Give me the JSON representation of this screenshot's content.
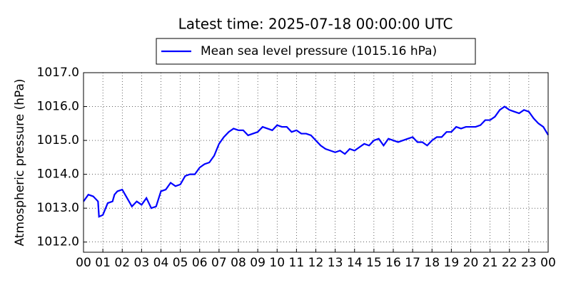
{
  "chart_data": {
    "type": "line",
    "title": "Latest time: 2025-07-18 00:00:00 UTC",
    "y_label": "Atmospheric pressure (hPa)",
    "grid": true,
    "legend": "upper center",
    "xlim": [
      0,
      24
    ],
    "xticks": [
      {
        "value": 0,
        "label": "00"
      },
      {
        "value": 1,
        "label": "01"
      },
      {
        "value": 2,
        "label": "02"
      },
      {
        "value": 3,
        "label": "03"
      },
      {
        "value": 4,
        "label": "04"
      },
      {
        "value": 5,
        "label": "05"
      },
      {
        "value": 6,
        "label": "06"
      },
      {
        "value": 7,
        "label": "07"
      },
      {
        "value": 8,
        "label": "08"
      },
      {
        "value": 9,
        "label": "09"
      },
      {
        "value": 10,
        "label": "10"
      },
      {
        "value": 11,
        "label": "11"
      },
      {
        "value": 12,
        "label": "12"
      },
      {
        "value": 13,
        "label": "13"
      },
      {
        "value": 14,
        "label": "14"
      },
      {
        "value": 15,
        "label": "15"
      },
      {
        "value": 16,
        "label": "16"
      },
      {
        "value": 17,
        "label": "17"
      },
      {
        "value": 18,
        "label": "18"
      },
      {
        "value": 19,
        "label": "19"
      },
      {
        "value": 20,
        "label": "20"
      },
      {
        "value": 21,
        "label": "21"
      },
      {
        "value": 22,
        "label": "22"
      },
      {
        "value": 23,
        "label": "23"
      },
      {
        "value": 24,
        "label": "00"
      }
    ],
    "ylim": [
      1011.7,
      1017
    ],
    "yticks": [
      {
        "value": 1012,
        "label": "1012.0"
      },
      {
        "value": 1013,
        "label": "1013.0"
      },
      {
        "value": 1014,
        "label": "1014.0"
      },
      {
        "value": 1015,
        "label": "1015.0"
      },
      {
        "value": 1016,
        "label": "1016.0"
      },
      {
        "value": 1017,
        "label": "1017.0"
      }
    ],
    "x": [
      0,
      0.25,
      0.5,
      0.75,
      0.8,
      1,
      1.25,
      1.5,
      1.6,
      1.75,
      2,
      2.25,
      2.5,
      2.75,
      3,
      3.25,
      3.5,
      3.75,
      4,
      4.25,
      4.5,
      4.75,
      5,
      5.25,
      5.5,
      5.75,
      6,
      6.25,
      6.5,
      6.75,
      7,
      7.25,
      7.5,
      7.75,
      8,
      8.25,
      8.5,
      8.75,
      9,
      9.25,
      9.5,
      9.75,
      10,
      10.25,
      10.5,
      10.75,
      11,
      11.25,
      11.5,
      11.75,
      12,
      12.25,
      12.5,
      12.75,
      13,
      13.25,
      13.5,
      13.75,
      14,
      14.25,
      14.5,
      14.75,
      15,
      15.25,
      15.5,
      15.75,
      16,
      16.25,
      16.5,
      16.75,
      17,
      17.25,
      17.5,
      17.75,
      18,
      18.25,
      18.5,
      18.75,
      19,
      19.25,
      19.5,
      19.75,
      20,
      20.25,
      20.5,
      20.75,
      21,
      21.25,
      21.5,
      21.75,
      22,
      22.25,
      22.5,
      22.75,
      23,
      23.25,
      23.5,
      23.75,
      24
    ],
    "series": [
      {
        "name": "Mean sea level pressure (1015.16 hPa)",
        "color": "#0000ff",
        "values": [
          1013.2,
          1013.4,
          1013.35,
          1013.2,
          1012.75,
          1012.8,
          1013.15,
          1013.2,
          1013.4,
          1013.5,
          1013.55,
          1013.3,
          1013.05,
          1013.2,
          1013.1,
          1013.3,
          1013.0,
          1013.05,
          1013.5,
          1013.55,
          1013.75,
          1013.65,
          1013.7,
          1013.95,
          1014.0,
          1014.0,
          1014.2,
          1014.3,
          1014.35,
          1014.55,
          1014.9,
          1015.1,
          1015.25,
          1015.35,
          1015.3,
          1015.3,
          1015.15,
          1015.2,
          1015.25,
          1015.4,
          1015.35,
          1015.3,
          1015.45,
          1015.4,
          1015.4,
          1015.25,
          1015.3,
          1015.2,
          1015.2,
          1015.15,
          1015.0,
          1014.85,
          1014.75,
          1014.7,
          1014.65,
          1014.7,
          1014.6,
          1014.75,
          1014.7,
          1014.8,
          1014.9,
          1014.85,
          1015.0,
          1015.05,
          1014.85,
          1015.05,
          1015.0,
          1014.95,
          1015.0,
          1015.05,
          1015.1,
          1014.95,
          1014.95,
          1014.85,
          1015.0,
          1015.1,
          1015.1,
          1015.25,
          1015.25,
          1015.4,
          1015.35,
          1015.4,
          1015.4,
          1015.4,
          1015.45,
          1015.6,
          1015.6,
          1015.7,
          1015.9,
          1016.0,
          1015.9,
          1015.85,
          1015.8,
          1015.9,
          1015.85,
          1015.65,
          1015.5,
          1015.4,
          1015.16
        ]
      }
    ]
  }
}
